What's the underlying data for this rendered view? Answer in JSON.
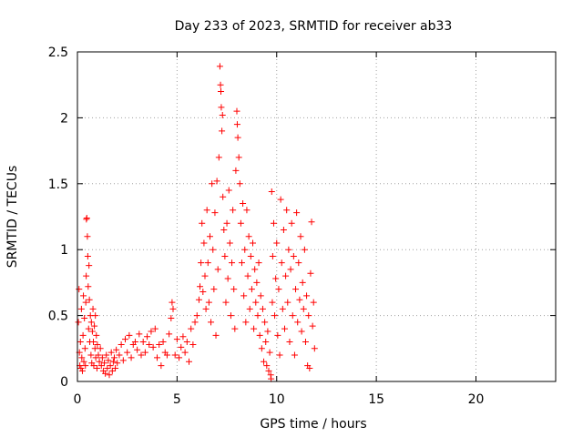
{
  "chart_data": {
    "type": "scatter",
    "title": "Day 233 of 2023, SRMTID for receiver ab33",
    "xlabel": "GPS time / hours",
    "ylabel": "SRMTID / TECUs",
    "xlim": [
      0,
      24
    ],
    "ylim": [
      0,
      2.5
    ],
    "xticks": [
      0,
      5,
      10,
      15,
      20
    ],
    "xtick_labels": [
      "0",
      "5",
      "10",
      "15",
      "20"
    ],
    "yticks": [
      0,
      0.5,
      1,
      1.5,
      2,
      2.5
    ],
    "ytick_labels": [
      "0",
      "0.5",
      "1",
      "1.5",
      "2",
      "2.5"
    ],
    "grid": true,
    "marker": "+",
    "color": "#ff0000",
    "series": [
      {
        "name": "ab33",
        "points": [
          [
            0.05,
            0.45
          ],
          [
            0.08,
            0.7
          ],
          [
            0.1,
            0.22
          ],
          [
            0.12,
            0.12
          ],
          [
            0.15,
            0.3
          ],
          [
            0.18,
            0.1
          ],
          [
            0.2,
            0.55
          ],
          [
            0.22,
            0.18
          ],
          [
            0.25,
            0.08
          ],
          [
            0.28,
            0.35
          ],
          [
            0.3,
            0.65
          ],
          [
            0.32,
            0.15
          ],
          [
            0.35,
            0.48
          ],
          [
            0.38,
            0.25
          ],
          [
            0.4,
            0.12
          ],
          [
            0.42,
            0.6
          ],
          [
            0.44,
            0.8
          ],
          [
            0.45,
            1.23
          ],
          [
            0.47,
            1.24
          ],
          [
            0.5,
            1.1
          ],
          [
            0.52,
            0.95
          ],
          [
            0.54,
            0.72
          ],
          [
            0.56,
            0.4
          ],
          [
            0.58,
            0.88
          ],
          [
            0.6,
            0.62
          ],
          [
            0.62,
            0.3
          ],
          [
            0.65,
            0.5
          ],
          [
            0.68,
            0.2
          ],
          [
            0.7,
            0.45
          ],
          [
            0.72,
            0.14
          ],
          [
            0.75,
            0.38
          ],
          [
            0.78,
            0.55
          ],
          [
            0.8,
            0.3
          ],
          [
            0.82,
            0.12
          ],
          [
            0.85,
            0.42
          ],
          [
            0.88,
            0.25
          ],
          [
            0.9,
            0.5
          ],
          [
            0.92,
            0.18
          ],
          [
            0.95,
            0.35
          ],
          [
            0.98,
            0.1
          ],
          [
            1.0,
            0.28
          ],
          [
            1.05,
            0.2
          ],
          [
            1.1,
            0.15
          ],
          [
            1.15,
            0.25
          ],
          [
            1.2,
            0.12
          ],
          [
            1.25,
            0.18
          ],
          [
            1.3,
            0.08
          ],
          [
            1.35,
            0.14
          ],
          [
            1.4,
            0.06
          ],
          [
            1.45,
            0.2
          ],
          [
            1.5,
            0.1
          ],
          [
            1.55,
            0.16
          ],
          [
            1.6,
            0.05
          ],
          [
            1.65,
            0.12
          ],
          [
            1.7,
            0.22
          ],
          [
            1.75,
            0.08
          ],
          [
            1.8,
            0.15
          ],
          [
            1.85,
            0.18
          ],
          [
            1.9,
            0.1
          ],
          [
            1.95,
            0.24
          ],
          [
            2.0,
            0.14
          ],
          [
            2.1,
            0.2
          ],
          [
            2.2,
            0.28
          ],
          [
            2.3,
            0.16
          ],
          [
            2.4,
            0.32
          ],
          [
            2.5,
            0.22
          ],
          [
            2.6,
            0.35
          ],
          [
            2.7,
            0.18
          ],
          [
            2.8,
            0.28
          ],
          [
            2.9,
            0.3
          ],
          [
            3.0,
            0.24
          ],
          [
            3.1,
            0.36
          ],
          [
            3.2,
            0.2
          ],
          [
            3.3,
            0.3
          ],
          [
            3.4,
            0.22
          ],
          [
            3.5,
            0.34
          ],
          [
            3.6,
            0.28
          ],
          [
            3.7,
            0.38
          ],
          [
            3.8,
            0.26
          ],
          [
            3.9,
            0.4
          ],
          [
            4.0,
            0.18
          ],
          [
            4.1,
            0.28
          ],
          [
            4.2,
            0.12
          ],
          [
            4.3,
            0.3
          ],
          [
            4.4,
            0.22
          ],
          [
            4.5,
            0.2
          ],
          [
            4.6,
            0.36
          ],
          [
            4.7,
            0.48
          ],
          [
            4.75,
            0.6
          ],
          [
            4.8,
            0.55
          ],
          [
            4.9,
            0.2
          ],
          [
            5.0,
            0.32
          ],
          [
            5.1,
            0.18
          ],
          [
            5.2,
            0.26
          ],
          [
            5.3,
            0.34
          ],
          [
            5.4,
            0.22
          ],
          [
            5.5,
            0.3
          ],
          [
            5.6,
            0.15
          ],
          [
            5.7,
            0.4
          ],
          [
            5.8,
            0.28
          ],
          [
            5.9,
            0.45
          ],
          [
            6.0,
            0.5
          ],
          [
            6.1,
            0.62
          ],
          [
            6.15,
            0.72
          ],
          [
            6.2,
            0.9
          ],
          [
            6.25,
            1.2
          ],
          [
            6.3,
            0.68
          ],
          [
            6.35,
            1.05
          ],
          [
            6.4,
            0.8
          ],
          [
            6.45,
            0.55
          ],
          [
            6.5,
            1.3
          ],
          [
            6.55,
            0.9
          ],
          [
            6.6,
            0.6
          ],
          [
            6.65,
            1.1
          ],
          [
            6.7,
            0.45
          ],
          [
            6.75,
            1.5
          ],
          [
            6.8,
            1.0
          ],
          [
            6.85,
            0.7
          ],
          [
            6.9,
            1.28
          ],
          [
            6.95,
            0.35
          ],
          [
            7.0,
            1.52
          ],
          [
            7.05,
            0.85
          ],
          [
            7.1,
            1.7
          ],
          [
            7.15,
            2.39
          ],
          [
            7.18,
            2.25
          ],
          [
            7.2,
            2.2
          ],
          [
            7.22,
            2.08
          ],
          [
            7.25,
            1.9
          ],
          [
            7.28,
            2.02
          ],
          [
            7.3,
            1.4
          ],
          [
            7.35,
            1.15
          ],
          [
            7.4,
            0.95
          ],
          [
            7.45,
            0.6
          ],
          [
            7.5,
            1.2
          ],
          [
            7.55,
            0.78
          ],
          [
            7.6,
            1.45
          ],
          [
            7.65,
            1.05
          ],
          [
            7.7,
            0.5
          ],
          [
            7.75,
            0.9
          ],
          [
            7.8,
            1.3
          ],
          [
            7.85,
            0.7
          ],
          [
            7.9,
            0.4
          ],
          [
            7.95,
            1.6
          ],
          [
            8.0,
            2.05
          ],
          [
            8.02,
            1.95
          ],
          [
            8.05,
            1.85
          ],
          [
            8.1,
            1.7
          ],
          [
            8.15,
            1.5
          ],
          [
            8.2,
            1.2
          ],
          [
            8.25,
            0.9
          ],
          [
            8.3,
            1.35
          ],
          [
            8.35,
            0.65
          ],
          [
            8.4,
            1.0
          ],
          [
            8.45,
            0.45
          ],
          [
            8.5,
            1.3
          ],
          [
            8.55,
            0.8
          ],
          [
            8.6,
            1.1
          ],
          [
            8.65,
            0.55
          ],
          [
            8.7,
            0.95
          ],
          [
            8.75,
            0.7
          ],
          [
            8.8,
            1.05
          ],
          [
            8.85,
            0.4
          ],
          [
            8.9,
            0.85
          ],
          [
            8.95,
            0.6
          ],
          [
            9.0,
            0.75
          ],
          [
            9.05,
            0.5
          ],
          [
            9.1,
            0.9
          ],
          [
            9.15,
            0.35
          ],
          [
            9.2,
            0.65
          ],
          [
            9.25,
            0.25
          ],
          [
            9.3,
            0.55
          ],
          [
            9.35,
            0.15
          ],
          [
            9.4,
            0.45
          ],
          [
            9.45,
            0.3
          ],
          [
            9.5,
            0.12
          ],
          [
            9.55,
            0.38
          ],
          [
            9.6,
            0.08
          ],
          [
            9.65,
            0.22
          ],
          [
            9.7,
            0.05
          ],
          [
            9.72,
            0.02
          ],
          [
            9.75,
            1.44
          ],
          [
            9.78,
            0.6
          ],
          [
            9.8,
            0.95
          ],
          [
            9.85,
            1.2
          ],
          [
            9.9,
            0.5
          ],
          [
            9.95,
            0.78
          ],
          [
            10.0,
            1.05
          ],
          [
            10.05,
            0.35
          ],
          [
            10.1,
            0.7
          ],
          [
            10.15,
            0.2
          ],
          [
            10.2,
            1.38
          ],
          [
            10.25,
            0.9
          ],
          [
            10.3,
            0.55
          ],
          [
            10.35,
            1.15
          ],
          [
            10.4,
            0.4
          ],
          [
            10.45,
            0.8
          ],
          [
            10.5,
            1.3
          ],
          [
            10.55,
            0.6
          ],
          [
            10.6,
            1.0
          ],
          [
            10.65,
            0.3
          ],
          [
            10.7,
            0.85
          ],
          [
            10.75,
            1.2
          ],
          [
            10.8,
            0.5
          ],
          [
            10.85,
            0.95
          ],
          [
            10.9,
            0.2
          ],
          [
            10.95,
            0.7
          ],
          [
            11.0,
            1.28
          ],
          [
            11.05,
            0.45
          ],
          [
            11.1,
            0.9
          ],
          [
            11.15,
            0.62
          ],
          [
            11.2,
            1.1
          ],
          [
            11.25,
            0.38
          ],
          [
            11.3,
            0.75
          ],
          [
            11.35,
            0.55
          ],
          [
            11.4,
            1.0
          ],
          [
            11.45,
            0.3
          ],
          [
            11.5,
            0.65
          ],
          [
            11.55,
            0.12
          ],
          [
            11.6,
            0.5
          ],
          [
            11.65,
            0.1
          ],
          [
            11.7,
            0.82
          ],
          [
            11.75,
            1.21
          ],
          [
            11.8,
            0.42
          ],
          [
            11.85,
            0.6
          ],
          [
            11.9,
            0.25
          ]
        ]
      }
    ]
  }
}
